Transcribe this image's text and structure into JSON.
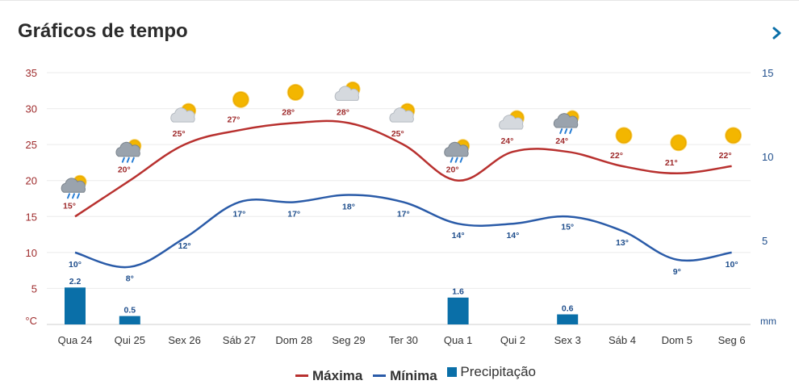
{
  "header": {
    "title": "Gráficos de tempo",
    "next_icon": "chevron-right-icon"
  },
  "legend": {
    "max_label": "Máxima",
    "min_label": "Mínima",
    "precip_label": "Precipitação"
  },
  "colors": {
    "max": "#b8312f",
    "min": "#2a5ba8",
    "precip": "#0a6fa8",
    "grid": "#ebebeb",
    "label_max": "#9e2a2b",
    "label_min": "#1f4e8c"
  },
  "chart_data": {
    "type": "line",
    "categories": [
      "Qua 24",
      "Qui 25",
      "Sex 26",
      "Sáb 27",
      "Dom 28",
      "Seg 29",
      "Ter 30",
      "Qua 1",
      "Qui 2",
      "Sex 3",
      "Sáb 4",
      "Dom 5",
      "Seg 6"
    ],
    "series": [
      {
        "name": "Máxima",
        "axis": "left",
        "values": [
          15,
          20,
          25,
          27,
          28,
          28,
          25,
          20,
          24,
          24,
          22,
          21,
          22
        ],
        "labels": [
          "15°",
          "20°",
          "25°",
          "27°",
          "28°",
          "28°",
          "25°",
          "20°",
          "24°",
          "24°",
          "22°",
          "21°",
          "22°"
        ]
      },
      {
        "name": "Mínima",
        "axis": "left",
        "values": [
          10,
          8,
          12,
          17,
          17,
          18,
          17,
          14,
          14,
          15,
          13,
          9,
          10
        ],
        "labels": [
          "10°",
          "8°",
          "12°",
          "17°",
          "17°",
          "18°",
          "17°",
          "14°",
          "14°",
          "15°",
          "13°",
          "9°",
          "10°"
        ]
      },
      {
        "name": "Precipitação",
        "type": "bar",
        "axis": "right",
        "values": [
          2.2,
          0.5,
          0,
          0,
          0,
          0,
          0,
          1.6,
          0,
          0.6,
          0,
          0,
          0
        ],
        "labels": [
          "2.2",
          "0.5",
          "",
          "",
          "",
          "",
          "",
          "1.6",
          "",
          "0.6",
          "",
          "",
          ""
        ]
      }
    ],
    "icons": [
      "rain-cloud-sun-icon",
      "rain-cloud-sun-icon",
      "sun-cloud-icon",
      "sun-icon",
      "sun-icon",
      "sun-cloud-icon",
      "sun-cloud-icon",
      "rain-cloud-sun-icon",
      "sun-cloud-icon",
      "rain-cloud-sun-icon",
      "sun-icon",
      "sun-icon",
      "sun-icon"
    ],
    "left_axis": {
      "ticks": [
        "35",
        "30",
        "25",
        "20",
        "15",
        "10",
        "5"
      ],
      "unit": "°C",
      "range": [
        0,
        35
      ]
    },
    "right_axis": {
      "ticks": [
        "15",
        "10",
        "5"
      ],
      "unit": "mm",
      "range": [
        0,
        15
      ]
    },
    "grid": true,
    "legend_position": "bottom"
  }
}
